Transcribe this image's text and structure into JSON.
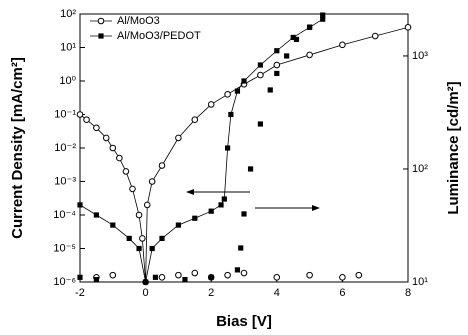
{
  "chart_data": {
    "type": "scatter",
    "xlabel": "Bias [V]",
    "ylabel": "Current Density [mA/cm²]",
    "y2label": "Luminance [cd/m²]",
    "log_y": true,
    "log_y2": true,
    "legend": "upper left",
    "xlim": [
      -2,
      8
    ],
    "xticks": [
      -2,
      0,
      2,
      4,
      6,
      8
    ],
    "ylim": [
      1e-06,
      100
    ],
    "yticks": [
      {
        "value": 1e-06,
        "label": "10⁻⁶"
      },
      {
        "value": 1e-05,
        "label": "10⁻⁵"
      },
      {
        "value": 0.0001,
        "label": "10⁻⁴"
      },
      {
        "value": 0.001,
        "label": "10⁻³"
      },
      {
        "value": 0.01,
        "label": "10⁻²"
      },
      {
        "value": 0.1,
        "label": "10⁻¹"
      },
      {
        "value": 1,
        "label": "10⁰"
      },
      {
        "value": 10,
        "label": "10¹"
      },
      {
        "value": 100,
        "label": "10²"
      }
    ],
    "y2lim": [
      10,
      2350
    ],
    "y2ticks": [
      {
        "value": 10,
        "label": "10¹"
      },
      {
        "value": 100,
        "label": "10²"
      },
      {
        "value": 1000,
        "label": "10³"
      }
    ],
    "series": [
      {
        "name": "Al/MoO3",
        "marker": "circle",
        "color": "#000000",
        "x": [
          -2,
          -1.8,
          -1.5,
          -1.2,
          -1,
          -0.8,
          -0.6,
          -0.4,
          -0.2,
          -0.1,
          0,
          0.05,
          0.2,
          0.5,
          1,
          1.5,
          2,
          2.5,
          3,
          3.5,
          4,
          5,
          6,
          7,
          8
        ],
        "values": [
          0.1,
          0.07,
          0.04,
          0.02,
          0.01,
          0.005,
          0.002,
          0.0006,
          0.0001,
          2e-05,
          1e-06,
          0.0002,
          0.001,
          0.003,
          0.02,
          0.07,
          0.2,
          0.4,
          0.8,
          1.5,
          3,
          6,
          12,
          22,
          40
        ]
      },
      {
        "name": "Al/MoO3/PEDOT",
        "marker": "square",
        "color": "#000000",
        "x": [
          -2,
          -1.5,
          -1,
          -0.5,
          -0.2,
          0,
          0.2,
          0.5,
          1,
          1.5,
          2,
          2.3,
          2.4,
          2.5,
          2.6,
          2.8,
          3,
          3.5,
          4,
          4.5,
          5,
          5.4
        ],
        "values": [
          0.0002,
          0.0001,
          5e-05,
          2e-05,
          1e-05,
          1e-06,
          1e-05,
          2e-05,
          5e-05,
          8e-05,
          0.00013,
          0.0002,
          0.0003,
          0.01,
          0.1,
          0.5,
          1,
          3,
          8,
          20,
          40,
          70
        ]
      }
    ],
    "luminance_series": [
      {
        "marker": "circle",
        "axis": "y2",
        "x": [
          -1.5,
          -1,
          0.5,
          1,
          1.5,
          2,
          2.5,
          3,
          4,
          5,
          6,
          6.5
        ],
        "values": [
          11,
          11.5,
          11,
          11.5,
          12,
          11,
          11.5,
          12,
          11,
          11.5,
          11,
          11.5
        ]
      },
      {
        "marker": "square",
        "axis": "y2",
        "x": [
          -2,
          -1.5,
          0.3,
          1.2,
          2,
          2.8,
          2.9,
          3,
          3.2,
          3.5,
          3.8,
          4,
          4.3,
          4.6,
          5,
          5.4
        ],
        "values": [
          11,
          10.5,
          11,
          10.5,
          11,
          12.8,
          20,
          40,
          100,
          250,
          500,
          700,
          1000,
          1400,
          1800,
          2300
        ]
      }
    ]
  }
}
